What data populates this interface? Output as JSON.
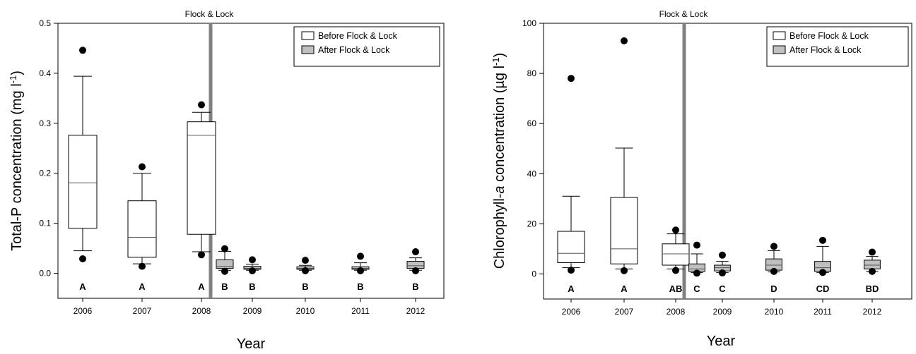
{
  "figure": {
    "x_label": "Year",
    "event_label": "Flock & Lock",
    "legend": {
      "before_label": "Before Flock & Lock",
      "after_label": "After Flock & Lock",
      "before_color": "#ffffff",
      "after_color": "#c0c0c0",
      "event_line_color": "#808080"
    }
  },
  "chart_data": [
    {
      "type": "box",
      "ylabel_main": "Total-P concentration (mg l",
      "ylabel_sup": "-1",
      "ylabel_tail": ")",
      "xlabel": "Year",
      "ylim": [
        -0.05,
        0.5
      ],
      "yticks": [
        "0.0",
        "0.1",
        "0.2",
        "0.3",
        "0.4",
        "0.5"
      ],
      "ytick_values": [
        0,
        0.1,
        0.2,
        0.3,
        0.4,
        0.5
      ],
      "event_after_index": 2,
      "series": [
        {
          "name": "Before Flock & Lock",
          "period": "before"
        },
        {
          "name": "After Flock & Lock",
          "period": "after"
        }
      ],
      "boxes": [
        {
          "year": "2006",
          "period": "before",
          "letter": "A",
          "min": 0.045,
          "q1": 0.09,
          "median": 0.181,
          "q3": 0.276,
          "max": 0.394,
          "outliers": [
            0.029,
            0.446
          ]
        },
        {
          "year": "2007",
          "period": "before",
          "letter": "A",
          "min": 0.019,
          "q1": 0.032,
          "median": 0.072,
          "q3": 0.145,
          "max": 0.2,
          "outliers": [
            0.014,
            0.213
          ]
        },
        {
          "year": "2008",
          "period": "before",
          "letter": "A",
          "min": 0.043,
          "q1": 0.078,
          "median": 0.276,
          "q3": 0.303,
          "max": 0.322,
          "outliers": [
            0.037,
            0.337
          ]
        },
        {
          "year": "",
          "period": "after",
          "letter": "B",
          "min": 0.006,
          "q1": 0.01,
          "median": 0.014,
          "q3": 0.027,
          "max": 0.044,
          "outliers": [
            0.004,
            0.049
          ]
        },
        {
          "year": "2009",
          "period": "after",
          "letter": "B",
          "min": 0.006,
          "q1": 0.008,
          "median": 0.01,
          "q3": 0.014,
          "max": 0.018,
          "outliers": [
            0.005,
            0.027
          ]
        },
        {
          "year": "2010",
          "period": "after",
          "letter": "B",
          "min": 0.006,
          "q1": 0.008,
          "median": 0.01,
          "q3": 0.013,
          "max": 0.016,
          "outliers": [
            0.005,
            0.026
          ]
        },
        {
          "year": "2011",
          "period": "after",
          "letter": "B",
          "min": 0.006,
          "q1": 0.008,
          "median": 0.01,
          "q3": 0.013,
          "max": 0.021,
          "outliers": [
            0.005,
            0.034
          ]
        },
        {
          "year": "2012",
          "period": "after",
          "letter": "B",
          "min": 0.006,
          "q1": 0.01,
          "median": 0.015,
          "q3": 0.024,
          "max": 0.031,
          "outliers": [
            0.005,
            0.043
          ]
        }
      ]
    },
    {
      "type": "box",
      "ylabel_main": "Chlorophyll-",
      "ylabel_italic": "a",
      "ylabel_rest": " concentration (µg l",
      "ylabel_sup": "-1",
      "ylabel_tail": ")",
      "xlabel": "Year",
      "ylim": [
        -10,
        100
      ],
      "yticks": [
        "0",
        "20",
        "40",
        "60",
        "80",
        "100"
      ],
      "ytick_values": [
        0,
        20,
        40,
        60,
        80,
        100
      ],
      "event_after_index": 2,
      "series": [
        {
          "name": "Before Flock & Lock",
          "period": "before"
        },
        {
          "name": "After Flock & Lock",
          "period": "after"
        }
      ],
      "boxes": [
        {
          "year": "2006",
          "period": "before",
          "letter": "A",
          "min": 2.5,
          "q1": 4.5,
          "median": 8.2,
          "q3": 17,
          "max": 31,
          "outliers": [
            1.5,
            78
          ]
        },
        {
          "year": "2007",
          "period": "before",
          "letter": "A",
          "min": 2.0,
          "q1": 4.0,
          "median": 10,
          "q3": 30.5,
          "max": 50.2,
          "outliers": [
            1.3,
            93
          ]
        },
        {
          "year": "2008",
          "period": "before",
          "letter": "AB",
          "min": 2.0,
          "q1": 3.5,
          "median": 8.0,
          "q3": 12,
          "max": 16,
          "outliers": [
            1.4,
            17.5
          ]
        },
        {
          "year": "",
          "period": "after",
          "letter": "C",
          "min": 0.5,
          "q1": 1.0,
          "median": 2.0,
          "q3": 4.0,
          "max": 8.0,
          "outliers": [
            0.3,
            11.5
          ]
        },
        {
          "year": "2009",
          "period": "after",
          "letter": "C",
          "min": 0.5,
          "q1": 1.2,
          "median": 2.5,
          "q3": 3.5,
          "max": 5.0,
          "outliers": [
            0.4,
            7.5
          ]
        },
        {
          "year": "2010",
          "period": "after",
          "letter": "D",
          "min": 0.8,
          "q1": 1.5,
          "median": 3.5,
          "q3": 6.0,
          "max": 9.3,
          "outliers": [
            1.0,
            11
          ]
        },
        {
          "year": "2011",
          "period": "after",
          "letter": "CD",
          "min": 0.5,
          "q1": 1.0,
          "median": 2.5,
          "q3": 5.0,
          "max": 11,
          "outliers": [
            0.6,
            13.4
          ]
        },
        {
          "year": "2012",
          "period": "after",
          "letter": "BD",
          "min": 1.0,
          "q1": 2.0,
          "median": 3.5,
          "q3": 5.5,
          "max": 7.0,
          "outliers": [
            1.0,
            8.7
          ]
        }
      ]
    }
  ]
}
